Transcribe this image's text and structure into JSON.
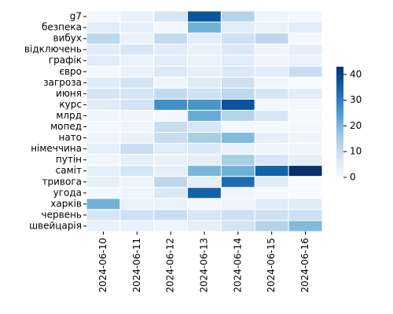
{
  "chart_data": {
    "type": "heatmap",
    "x": [
      "2024-06-10",
      "2024-06-11",
      "2024-06-12",
      "2024-06-13",
      "2024-06-14",
      "2024-06-15",
      "2024-06-16"
    ],
    "y": [
      "g7",
      "безпека",
      "вибух",
      "відключень",
      "графік",
      "євро",
      "загроза",
      "июня",
      "курс",
      "млрд",
      "мопед",
      "нато",
      "німеччина",
      "путін",
      "саміт",
      "тривога",
      "угода",
      "харків",
      "червень",
      "швейцарія"
    ],
    "values": [
      [
        1,
        3,
        7,
        37,
        13,
        2,
        1
      ],
      [
        5,
        4,
        1,
        21,
        5,
        3,
        5
      ],
      [
        12,
        3,
        11,
        5,
        9,
        12,
        1
      ],
      [
        5,
        7,
        5,
        3,
        6,
        2,
        4
      ],
      [
        5,
        3,
        5,
        3,
        5,
        2,
        3
      ],
      [
        1,
        3,
        6,
        4,
        6,
        5,
        10
      ],
      [
        5,
        8,
        2,
        5,
        9,
        2,
        0
      ],
      [
        7,
        7,
        11,
        9,
        12,
        7,
        5
      ],
      [
        5,
        8,
        27,
        26,
        37,
        1,
        1
      ],
      [
        2,
        2,
        1,
        22,
        13,
        7,
        1
      ],
      [
        1,
        2,
        10,
        7,
        1,
        1,
        1
      ],
      [
        2,
        3,
        10,
        15,
        19,
        4,
        2
      ],
      [
        4,
        10,
        5,
        6,
        3,
        2,
        2
      ],
      [
        2,
        4,
        3,
        4,
        15,
        7,
        4
      ],
      [
        4,
        7,
        4,
        20,
        21,
        35,
        43
      ],
      [
        4,
        2,
        12,
        4,
        33,
        5,
        0
      ],
      [
        1,
        2,
        6,
        35,
        2,
        1,
        0
      ],
      [
        21,
        3,
        3,
        1,
        2,
        5,
        5
      ],
      [
        7,
        9,
        10,
        7,
        9,
        9,
        9
      ],
      [
        3,
        3,
        2,
        4,
        8,
        13,
        19
      ]
    ],
    "colorbar": {
      "min": 0,
      "max": 43,
      "ticks": [
        0,
        10,
        20,
        30,
        40
      ],
      "colormap": "Blues"
    },
    "title": "",
    "xlabel": "",
    "ylabel": "",
    "grid": false
  }
}
